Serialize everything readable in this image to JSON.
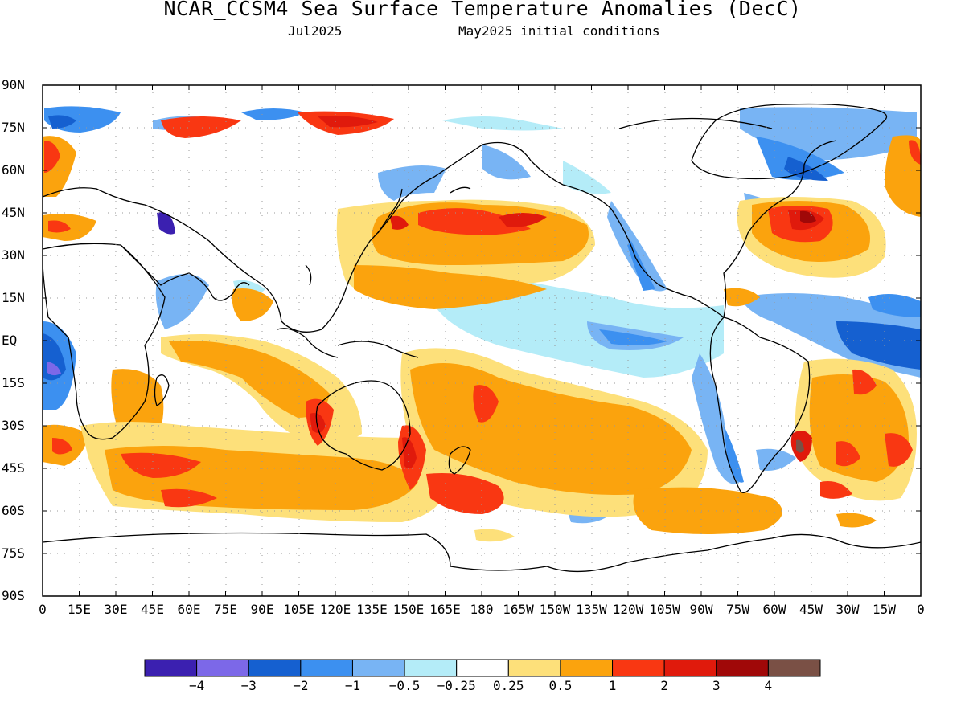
{
  "title": "NCAR_CCSM4 Sea Surface Temperature Anomalies (DecC)",
  "subtitle_left": "Jul2025",
  "subtitle_right": "May2025 initial conditions",
  "y_ticks": [
    "90N",
    "75N",
    "60N",
    "45N",
    "30N",
    "15N",
    "EQ",
    "15S",
    "30S",
    "45S",
    "60S",
    "75S",
    "90S"
  ],
  "x_ticks": [
    "0",
    "15E",
    "30E",
    "45E",
    "60E",
    "75E",
    "90E",
    "105E",
    "120E",
    "135E",
    "150E",
    "165E",
    "180",
    "165W",
    "150W",
    "135W",
    "120W",
    "105W",
    "90W",
    "75W",
    "60W",
    "45W",
    "30W",
    "15W",
    "0"
  ],
  "colorbar": {
    "colors": [
      "#3b20b0",
      "#7c68e8",
      "#1560d0",
      "#3c90f0",
      "#78b4f4",
      "#b4ecf8",
      "#ffffff",
      "#fde07a",
      "#fba30d",
      "#f93712",
      "#e01a0c",
      "#a00808",
      "#7a5045"
    ],
    "labels": [
      "−4",
      "−3",
      "−2",
      "−1",
      "−0.5",
      "−0.25",
      "0.25",
      "0.5",
      "1",
      "2",
      "3",
      "4"
    ]
  }
}
